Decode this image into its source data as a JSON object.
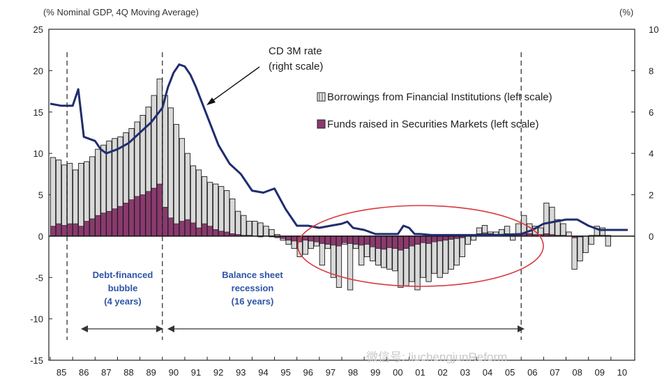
{
  "chart_data": {
    "type": "bar",
    "left_axis_title": "(% Nominal GDP, 4Q Moving Average)",
    "right_axis_title": "(%)",
    "ylim_left": [
      -15,
      25
    ],
    "ylim_right": [
      0,
      10
    ],
    "left_ticks": [
      "25",
      "20",
      "15",
      "10",
      "5",
      "0",
      "-5",
      "-10",
      "-15"
    ],
    "right_ticks": [
      "10",
      "8",
      "6",
      "4",
      "2",
      "0"
    ],
    "x_tick_labels": [
      "85",
      "86",
      "87",
      "88",
      "89",
      "90",
      "91",
      "92",
      "93",
      "94",
      "95",
      "96",
      "97",
      "98",
      "99",
      "00",
      "01",
      "02",
      "03",
      "04",
      "05",
      "06",
      "07",
      "08",
      "09",
      "10"
    ],
    "quarters_start": "1985",
    "series": [
      {
        "name": "Borrowings from Financial Institutions (left scale)",
        "color": "#d9d9d9",
        "values": [
          9.5,
          9.2,
          8.6,
          8.8,
          8.0,
          8.8,
          9.0,
          9.6,
          10.5,
          11.0,
          11.5,
          11.8,
          12.0,
          12.5,
          13.0,
          13.8,
          14.6,
          15.6,
          17.0,
          19.0,
          17.0,
          15.5,
          13.5,
          11.8,
          10.0,
          8.5,
          8.0,
          7.2,
          6.5,
          6.3,
          6.0,
          5.5,
          4.5,
          3.0,
          2.5,
          1.8,
          1.8,
          1.6,
          1.2,
          0.8,
          0.2,
          -0.5,
          -1.0,
          -1.5,
          -2.5,
          -2.2,
          -1.5,
          -1.2,
          -3.5,
          -1.5,
          -5.0,
          -6.2,
          -1.0,
          -6.5,
          -1.5,
          -3.5,
          -2.5,
          -3.0,
          -3.5,
          -3.8,
          -4.0,
          -4.2,
          -6.2,
          -6.0,
          -5.5,
          -6.5,
          -5.0,
          -5.5,
          -4.5,
          -5.0,
          -4.5,
          -4.0,
          -3.5,
          -2.5,
          -1.0,
          -0.5,
          1.0,
          1.3,
          0.5,
          0.5,
          0.8,
          1.2,
          -0.5,
          1.5,
          2.5,
          1.5,
          1.2,
          1.0,
          4.0,
          3.5,
          2.0,
          1.5,
          0.5,
          -4.0,
          -3.0,
          -2.0,
          -1.0,
          1.2,
          1.0,
          -1.2
        ],
        "secondary_values": [
          1.2,
          1.5,
          1.3,
          1.5,
          1.5,
          1.2,
          1.8,
          2.1,
          2.5,
          2.8,
          3.0,
          3.3,
          3.6,
          4.0,
          4.4,
          4.8,
          5.0,
          5.4,
          5.8,
          6.3,
          3.5,
          2.2,
          1.5,
          1.8,
          2.0,
          1.6,
          1.0,
          1.5,
          1.2,
          0.8,
          0.6,
          0.5,
          0.3,
          0.2,
          0.1,
          0.1,
          0,
          -0.1,
          0,
          -0.1,
          -0.2,
          -0.3,
          -0.5,
          -0.6,
          -0.7,
          -0.5,
          -0.6,
          -0.7,
          -0.9,
          -1.0,
          -1.1,
          -1.2,
          -0.8,
          -0.9,
          -1.0,
          -1.1,
          -1.0,
          -1.3,
          -1.5,
          -1.6,
          -1.4,
          -1.5,
          -1.7,
          -1.5,
          -1.2,
          -1.0,
          -0.8,
          -0.9,
          -0.7,
          -0.6,
          -0.5,
          -0.4,
          -0.3,
          -0.2,
          0.1,
          0.2,
          0.3,
          0.4,
          0.3,
          0.2,
          0.2,
          0.3,
          0.2,
          0.3,
          0.4,
          0.3,
          0.2,
          0.2,
          0.3,
          0.2,
          0.1,
          0.1,
          0,
          -0.2,
          -0.1,
          0,
          0.1,
          0.1,
          0.1,
          0.1
        ]
      },
      {
        "name": "Funds raised in Securities Markets (left scale)",
        "color": "#8a3a6e"
      },
      {
        "name": "CD 3M rate",
        "name_note": "(right scale)",
        "color": "#1f2d6e",
        "axis": "right",
        "points": [
          [
            1985.0,
            6.4
          ],
          [
            1985.5,
            6.3
          ],
          [
            1986.0,
            6.3
          ],
          [
            1986.25,
            7.1
          ],
          [
            1986.5,
            4.8
          ],
          [
            1987.0,
            4.6
          ],
          [
            1987.25,
            4.2
          ],
          [
            1987.5,
            4.0
          ],
          [
            1988.0,
            4.2
          ],
          [
            1988.5,
            4.5
          ],
          [
            1989.0,
            5.0
          ],
          [
            1989.5,
            5.5
          ],
          [
            1990.0,
            6.2
          ],
          [
            1990.25,
            7.2
          ],
          [
            1990.5,
            7.9
          ],
          [
            1990.75,
            8.3
          ],
          [
            1991.0,
            8.2
          ],
          [
            1991.25,
            7.8
          ],
          [
            1991.5,
            7.2
          ],
          [
            1992.0,
            5.8
          ],
          [
            1992.5,
            4.4
          ],
          [
            1993.0,
            3.5
          ],
          [
            1993.5,
            3.0
          ],
          [
            1994.0,
            2.2
          ],
          [
            1994.5,
            2.1
          ],
          [
            1995.0,
            2.3
          ],
          [
            1995.5,
            1.3
          ],
          [
            1996.0,
            0.5
          ],
          [
            1996.5,
            0.5
          ],
          [
            1997.0,
            0.4
          ],
          [
            1997.5,
            0.5
          ],
          [
            1998.0,
            0.6
          ],
          [
            1998.25,
            0.7
          ],
          [
            1998.5,
            0.4
          ],
          [
            1999.0,
            0.3
          ],
          [
            1999.5,
            0.1
          ],
          [
            2000.0,
            0.1
          ],
          [
            2000.5,
            0.1
          ],
          [
            2000.75,
            0.5
          ],
          [
            2001.0,
            0.4
          ],
          [
            2001.25,
            0.1
          ],
          [
            2001.5,
            0.1
          ],
          [
            2002.0,
            0.05
          ],
          [
            2003.0,
            0.05
          ],
          [
            2004.0,
            0.05
          ],
          [
            2005.0,
            0.05
          ],
          [
            2006.0,
            0.1
          ],
          [
            2006.5,
            0.3
          ],
          [
            2007.0,
            0.6
          ],
          [
            2007.5,
            0.7
          ],
          [
            2008.0,
            0.8
          ],
          [
            2008.5,
            0.8
          ],
          [
            2009.0,
            0.5
          ],
          [
            2009.5,
            0.3
          ],
          [
            2010.0,
            0.3
          ],
          [
            2010.75,
            0.3
          ]
        ]
      }
    ],
    "vlines": [
      1985.75,
      1990.0,
      2006.0
    ],
    "annotations": {
      "cd_label": "CD 3M rate",
      "cd_sub": "(right scale)",
      "bubble_line1": "Debt-financed",
      "bubble_line2": "bubble",
      "bubble_line3": "(4 years)",
      "recess_line1": "Balance sheet",
      "recess_line2": "recession",
      "recess_line3": "(16 years)"
    },
    "legend_position": "top-right"
  },
  "watermark": "微信号: liuchengjunReform",
  "colors": {
    "border": "#222222",
    "ellipse": "#d9383d",
    "annotation_blue": "#2e54a6",
    "line": "#1f2d6e"
  }
}
